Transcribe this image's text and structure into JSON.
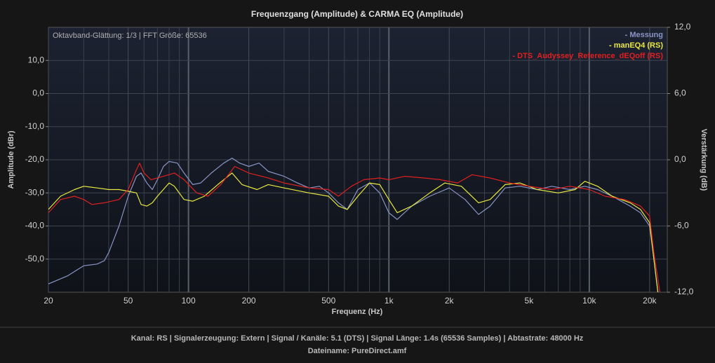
{
  "chart_data": {
    "type": "line",
    "title": "Frequenzgang (Amplitude) & CARMA EQ (Amplitude)",
    "subtitle": "Oktavband-Glättung: 1/3 | FFT Größe: 65536",
    "xlabel": "Frequenz (Hz)",
    "ylabel": "Amplitude (dBr)",
    "y2label": "Verstärkung (dB)",
    "xscale": "log",
    "xlim": [
      20,
      24500
    ],
    "ylim": [
      -60,
      20
    ],
    "y2lim": [
      -12,
      12
    ],
    "xticks": [
      20,
      50,
      100,
      200,
      500,
      {
        "value": 1000,
        "label": "1k"
      },
      {
        "value": 2000,
        "label": "2k"
      },
      {
        "value": 5000,
        "label": "5k"
      },
      {
        "value": 10000,
        "label": "10k"
      },
      {
        "value": 20000,
        "label": "20k"
      }
    ],
    "x_minor_ticks": [
      30,
      40,
      60,
      70,
      80,
      90,
      300,
      400,
      600,
      700,
      800,
      900,
      3000,
      4000,
      6000,
      7000,
      8000,
      9000
    ],
    "yticks": [
      {
        "value": -50,
        "label": "-50,0"
      },
      {
        "value": -40,
        "label": "-40,0"
      },
      {
        "value": -30,
        "label": "-30,0"
      },
      {
        "value": -20,
        "label": "-20,0"
      },
      {
        "value": -10,
        "label": "-10,0"
      },
      {
        "value": 0,
        "label": "0,0"
      },
      {
        "value": 10,
        "label": "10,0"
      }
    ],
    "y2ticks": [
      {
        "value": -12,
        "label": "-12,0"
      },
      {
        "value": -6,
        "label": "-6,0"
      },
      {
        "value": 0,
        "label": "0,0"
      },
      {
        "value": 6,
        "label": "6,0"
      },
      {
        "value": 12,
        "label": "12,0"
      }
    ],
    "grid": true,
    "legend": "top-right",
    "series": [
      {
        "name": "- Messung",
        "color": "#8a94c4",
        "x": [
          20,
          25,
          30,
          35,
          38,
          40,
          45,
          50,
          55,
          58,
          62,
          66,
          70,
          75,
          80,
          88,
          95,
          105,
          115,
          130,
          150,
          165,
          180,
          200,
          225,
          250,
          300,
          350,
          400,
          450,
          500,
          560,
          620,
          700,
          800,
          900,
          1000,
          1100,
          1300,
          1600,
          2000,
          2400,
          2800,
          3200,
          3800,
          4500,
          5500,
          6500,
          8000,
          9500,
          11000,
          13000,
          16000,
          18000,
          20000,
          21000,
          22000
        ],
        "values": [
          -57.5,
          -55,
          -52,
          -51.5,
          -50.5,
          -48,
          -40,
          -31,
          -25,
          -24,
          -27,
          -29,
          -26,
          -22,
          -20.5,
          -21,
          -24,
          -27.5,
          -27,
          -24,
          -21,
          -19.5,
          -21,
          -22,
          -21,
          -23.5,
          -25,
          -27,
          -28.5,
          -28,
          -30,
          -33,
          -35,
          -29,
          -27,
          -30,
          -36,
          -38,
          -34,
          -31,
          -28.5,
          -32,
          -36.5,
          -34,
          -28.5,
          -28,
          -29,
          -28,
          -29,
          -28,
          -29,
          -31,
          -34,
          -36,
          -40,
          -50,
          -60
        ]
      },
      {
        "name": "- manEQ4 (RS)",
        "color": "#e8e840",
        "x": [
          20,
          23,
          27,
          30,
          35,
          40,
          45,
          50,
          55,
          58,
          62,
          66,
          70,
          80,
          85,
          95,
          105,
          120,
          140,
          165,
          185,
          220,
          250,
          300,
          400,
          500,
          560,
          620,
          700,
          800,
          900,
          1000,
          1100,
          1300,
          1600,
          1900,
          2300,
          2800,
          3200,
          3800,
          4500,
          5500,
          7000,
          8500,
          9500,
          11000,
          13000,
          16000,
          18000,
          20000,
          21000,
          22000
        ],
        "values": [
          -35,
          -31,
          -29,
          -28,
          -28.5,
          -29,
          -29,
          -29.5,
          -30,
          -33.5,
          -34,
          -33,
          -31,
          -27,
          -28,
          -32,
          -32.5,
          -31,
          -27.5,
          -24,
          -27.5,
          -29,
          -27.5,
          -28.5,
          -30,
          -31,
          -34,
          -35,
          -31,
          -27,
          -27.5,
          -32,
          -36,
          -34,
          -30,
          -27,
          -28,
          -33,
          -32,
          -27.5,
          -27,
          -29,
          -30,
          -29,
          -26.5,
          -28,
          -31,
          -33,
          -35,
          -39,
          -50,
          -60
        ]
      },
      {
        "name": "- DTS_Audyssey_Reference_dEQoff (RS)",
        "color": "#e02020",
        "x": [
          20,
          23,
          27,
          30,
          33,
          38,
          45,
          50,
          55,
          57,
          60,
          65,
          75,
          85,
          95,
          110,
          125,
          145,
          170,
          200,
          250,
          300,
          400,
          500,
          560,
          650,
          750,
          900,
          1000,
          1200,
          1500,
          1800,
          2200,
          2600,
          3200,
          4000,
          5000,
          6500,
          8000,
          10000,
          12000,
          15000,
          18000,
          20000,
          21000,
          22500
        ],
        "values": [
          -36,
          -32,
          -31,
          -32,
          -33.5,
          -33,
          -32,
          -29,
          -23,
          -21,
          -24,
          -26,
          -25,
          -24,
          -26,
          -30,
          -31,
          -27.5,
          -22,
          -24,
          -25.5,
          -27,
          -28.5,
          -29,
          -31,
          -28,
          -26,
          -25.5,
          -26,
          -25,
          -25.5,
          -26,
          -27,
          -24.5,
          -25.5,
          -27,
          -28,
          -29,
          -28,
          -29,
          -31,
          -32,
          -34,
          -37,
          -48,
          -60
        ]
      }
    ],
    "footer_lines": [
      "Kanal: RS  |  Signalerzeugung: Extern   |  Signal / Kanäle: 5.1 (DTS)  |  Signal Länge: 1.4s (65536 Samples)  |  Abtastrate: 48000 Hz",
      "Dateiname: PureDirect.amf"
    ]
  }
}
